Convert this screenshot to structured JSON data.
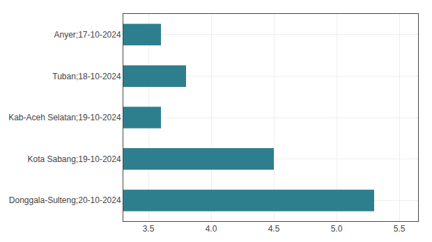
{
  "chart_data": {
    "type": "bar",
    "orientation": "horizontal",
    "categories": [
      "Donggala-Sulteng;20-10-2024",
      "Kota Sabang;19-10-2024",
      "Kab-Aceh Selatan;19-10-2024",
      "Tuban;18-10-2024",
      "Anyer;17-10-2024"
    ],
    "values": [
      5.3,
      4.5,
      3.6,
      3.8,
      3.6
    ],
    "color": "#2e7f8e",
    "xlim": [
      3.3,
      5.65
    ],
    "xticks": [
      3.5,
      {
        "value": 4.0,
        "label": "4.0"
      },
      4.5,
      {
        "value": 5.0,
        "label": "5.0"
      },
      5.5
    ],
    "grid": true
  }
}
